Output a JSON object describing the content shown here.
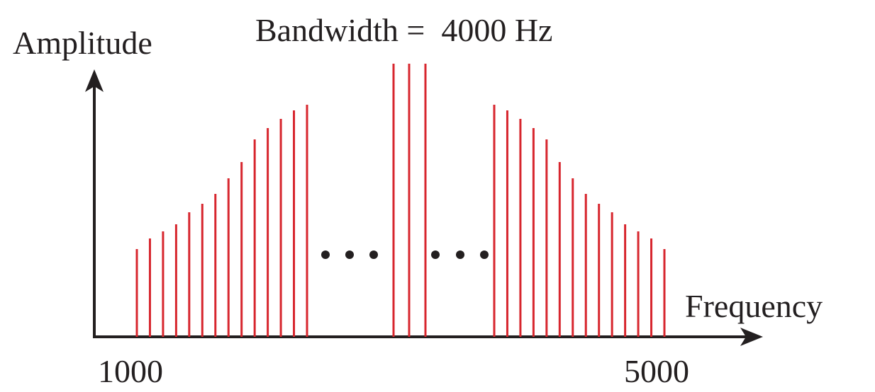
{
  "title": "Bandwidth =  4000 Hz",
  "y_axis": {
    "label": "Amplitude"
  },
  "x_axis": {
    "label": "Frequency",
    "ticks": [
      "1000",
      "5000"
    ]
  }
}
